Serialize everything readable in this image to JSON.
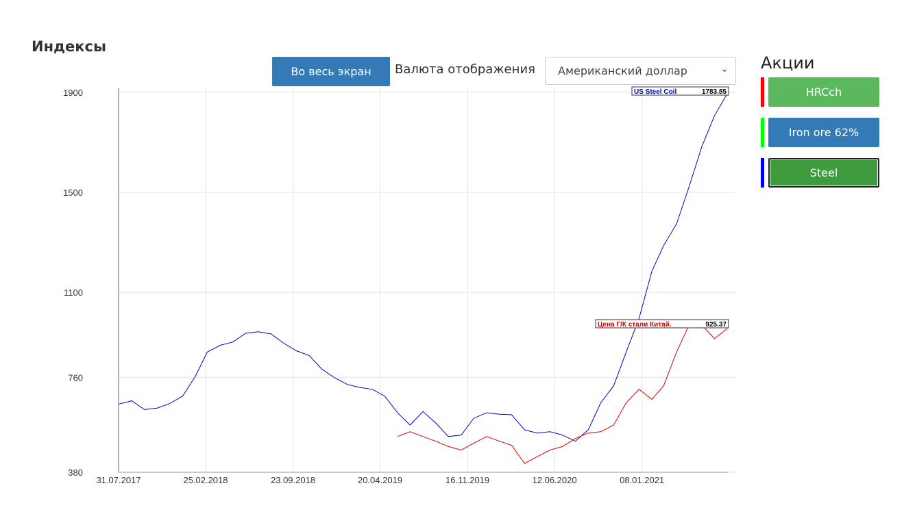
{
  "header": {
    "title": "Индексы",
    "fullscreen_button": "Во весь экран",
    "currency_label": "Валюта отображения",
    "currency_select": "Американский доллар"
  },
  "sidebar": {
    "title": "Акции",
    "buttons": [
      {
        "label": "HRCch",
        "color": "#ff0000"
      },
      {
        "label": "Iron ore 62%",
        "color": "#00ff00"
      },
      {
        "label": "Steel",
        "color": "#0000ff"
      }
    ]
  },
  "chart_data": {
    "type": "line",
    "xlim": [
      "31.07.2017",
      "04.08.2021"
    ],
    "xticks": [
      "31.07.2017",
      "25.02.2018",
      "23.09.2018",
      "20.04.2019",
      "16.11.2019",
      "12.06.2020",
      "08.01.2021"
    ],
    "ylim": [
      380,
      1900
    ],
    "yticks": [
      380,
      760,
      1100,
      1500,
      1900
    ],
    "grid": true,
    "x": [
      "01.08.2017",
      "01.09.2017",
      "01.10.2017",
      "01.11.2017",
      "01.12.2017",
      "01.01.2018",
      "01.02.2018",
      "01.03.2018",
      "01.04.2018",
      "01.05.2018",
      "01.06.2018",
      "01.07.2018",
      "01.08.2018",
      "01.09.2018",
      "01.10.2018",
      "01.11.2018",
      "01.12.2018",
      "01.01.2019",
      "01.02.2019",
      "01.03.2019",
      "01.04.2019",
      "01.05.2019",
      "01.06.2019",
      "01.07.2019",
      "01.08.2019",
      "01.09.2019",
      "01.10.2019",
      "01.11.2019",
      "01.12.2019",
      "01.01.2020",
      "01.02.2020",
      "01.03.2020",
      "01.04.2020",
      "01.05.2020",
      "01.06.2020",
      "01.07.2020",
      "01.08.2020",
      "01.09.2020",
      "01.10.2020",
      "01.11.2020",
      "01.12.2020",
      "01.01.2021",
      "01.02.2021",
      "01.03.2021",
      "01.04.2021",
      "01.05.2021",
      "01.06.2021",
      "01.07.2021",
      "01.08.2021"
    ],
    "series": [
      {
        "name": "US Steel Coil",
        "color": "#0000cc",
        "tooltip_value": 1783.85,
        "values": [
          653,
          666,
          631,
          637,
          655,
          685,
          766,
          861,
          888,
          901,
          936,
          942,
          934,
          896,
          866,
          847,
          793,
          758,
          731,
          720,
          712,
          685,
          618,
          569,
          623,
          577,
          523,
          529,
          596,
          618,
          612,
          610,
          550,
          537,
          542,
          529,
          504,
          550,
          658,
          726,
          861,
          996,
          1185,
          1287,
          1374,
          1522,
          1684,
          1806,
          1895
        ]
      },
      {
        "name": "Цена Г/К стали Китай.",
        "color": "#dd0000",
        "tooltip_value": 925.37,
        "values": [
          null,
          null,
          null,
          null,
          null,
          null,
          null,
          null,
          null,
          null,
          null,
          null,
          null,
          null,
          null,
          null,
          null,
          null,
          null,
          null,
          null,
          null,
          523,
          542,
          523,
          504,
          483,
          469,
          496,
          523,
          504,
          488,
          415,
          442,
          469,
          483,
          515,
          537,
          542,
          569,
          658,
          712,
          672,
          726,
          861,
          969,
          969,
          915,
          955
        ]
      }
    ]
  }
}
